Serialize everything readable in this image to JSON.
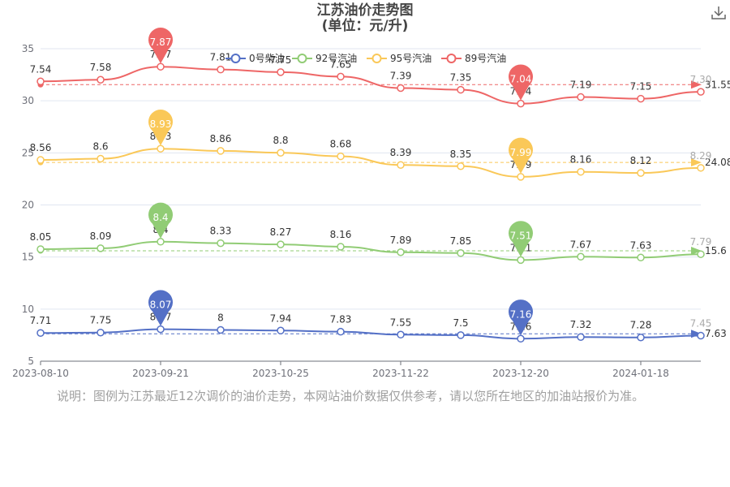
{
  "title": {
    "line1": "江苏油价走势图",
    "line2": "(单位：元/升)"
  },
  "download_icon": "download-icon",
  "caption": "说明：图例为江苏最近12次调价的油价走势，本网站油价数据仅供参考，请以您所在地区的加油站报价为准。",
  "chart_data": {
    "type": "line",
    "title": "江苏油价走势图 (单位：元/升)",
    "x_ticks": [
      "2023-08-10",
      "2023-09-21",
      "2023-10-25",
      "2023-11-22",
      "2023-12-20",
      "2024-01-18"
    ],
    "y_ticks": [
      5,
      10,
      15,
      20,
      25,
      30,
      35
    ],
    "legend": [
      "0号柴油",
      "92号汽油",
      "95号汽油",
      "89号汽油"
    ],
    "legend_position": "top-center",
    "grid": "horizontal",
    "series": [
      {
        "name": "0号柴油",
        "color": "#5470c6",
        "labels": [
          "7.71",
          "7.75",
          "8.07",
          "8",
          "7.94",
          "7.83",
          "7.55",
          "7.5",
          "7.16",
          "7.32",
          "7.28",
          "7.45"
        ],
        "plotted": [
          7.71,
          7.75,
          8.07,
          8.0,
          7.94,
          7.83,
          7.55,
          7.5,
          7.16,
          7.32,
          7.28,
          7.45
        ],
        "max_label": "8.07",
        "min_label": "7.16",
        "avg_label": "7.63",
        "avg_value": 7.63
      },
      {
        "name": "92号汽油",
        "color": "#91cc75",
        "labels": [
          "8.05",
          "8.09",
          "8.4",
          "8.33",
          "8.27",
          "8.16",
          "7.89",
          "7.85",
          "7.51",
          "7.67",
          "7.63",
          "7.79"
        ],
        "plotted": [
          15.75,
          15.84,
          16.47,
          16.33,
          16.21,
          15.99,
          15.46,
          15.38,
          14.71,
          15.03,
          14.95,
          15.27
        ],
        "max_label": "8.4",
        "min_label": "7.51",
        "avg_label": "15.6",
        "avg_value": 15.6
      },
      {
        "name": "95号汽油",
        "color": "#fac858",
        "labels": [
          "8.56",
          "8.6",
          "8.93",
          "8.86",
          "8.8",
          "8.68",
          "8.39",
          "8.35",
          "7.99",
          "8.16",
          "8.12",
          "8.29"
        ],
        "plotted": [
          24.32,
          24.44,
          25.4,
          25.19,
          25.01,
          24.67,
          23.84,
          23.72,
          22.7,
          23.18,
          23.07,
          23.56
        ],
        "max_label": "8.93",
        "min_label": "7.99",
        "avg_label": "24.08",
        "avg_value": 24.08
      },
      {
        "name": "89号汽油",
        "color": "#ee6666",
        "labels": [
          "7.54",
          "7.58",
          "7.87",
          "7.81",
          "7.75",
          "7.65",
          "7.39",
          "7.35",
          "7.04",
          "7.19",
          "7.15",
          "7.30"
        ],
        "plotted": [
          31.86,
          32.02,
          33.27,
          33.0,
          32.75,
          32.32,
          31.22,
          31.06,
          29.73,
          30.36,
          30.2,
          30.86
        ],
        "max_label": "7.87",
        "min_label": "7.04",
        "avg_label": "31.55",
        "avg_value": 31.55
      }
    ]
  }
}
